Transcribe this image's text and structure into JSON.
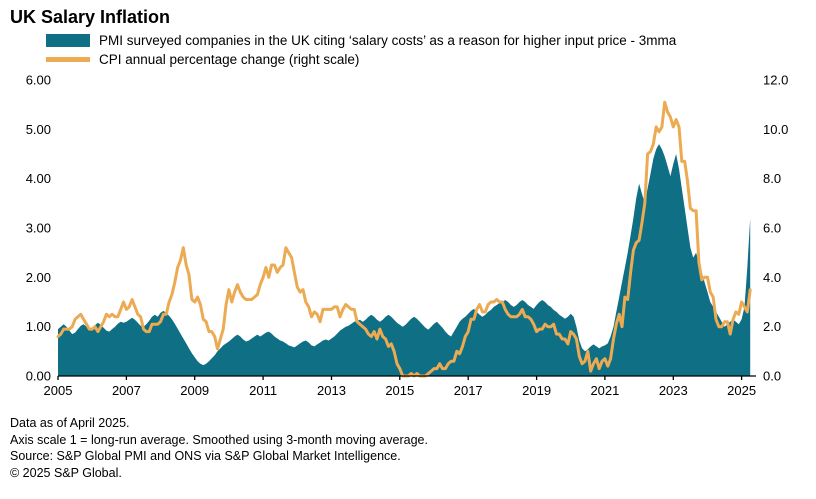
{
  "title": "UK Salary Inflation",
  "legend": [
    {
      "label": "PMI surveyed companies in the UK citing ‘salary costs’ as a reason for higher input price - 3mma",
      "color": "#0e6f85",
      "style": "area"
    },
    {
      "label": "CPI annual percentage change (right scale)",
      "color": "#ecaa52",
      "style": "line"
    }
  ],
  "footnotes": [
    "Data as of April 2025.",
    "Axis scale 1 = long-run average. Smoothed using 3-month moving average.",
    "Source: S&P Global PMI and ONS via S&P Global Market Intelligence.",
    "© 2025 S&P Global."
  ],
  "chart_data": {
    "type": "area",
    "x_data_start": 2005.0,
    "x_step_per_point": 0.0833333,
    "x_domain": [
      2005.0,
      2025.42
    ],
    "x_ticks": [
      2005,
      2007,
      2009,
      2011,
      2013,
      2015,
      2017,
      2019,
      2021,
      2023,
      2025
    ],
    "left_axis": {
      "range": [
        0,
        6
      ],
      "tick_values": [
        0,
        1,
        2,
        3,
        4,
        5,
        6
      ],
      "tick_labels": [
        "0.00",
        "1.00",
        "2.00",
        "3.00",
        "4.00",
        "5.00",
        "6.00"
      ]
    },
    "right_axis": {
      "range": [
        0,
        12
      ],
      "tick_values": [
        0,
        2,
        4,
        6,
        8,
        10,
        12
      ],
      "tick_labels": [
        "0.0",
        "2.0",
        "4.0",
        "6.0",
        "8.0",
        "10.0",
        "12.0"
      ]
    },
    "series": [
      {
        "name": "PMI salary costs mentions - 3mma",
        "axis": "left",
        "style": "area",
        "color": "#0e6f85",
        "values": [
          0.95,
          1.0,
          1.05,
          1.0,
          0.92,
          0.85,
          0.88,
          0.95,
          1.02,
          1.05,
          1.0,
          0.95,
          0.98,
          1.03,
          1.08,
          1.04,
          0.98,
          0.92,
          0.9,
          0.95,
          1.0,
          1.06,
          1.1,
          1.08,
          1.1,
          1.14,
          1.18,
          1.14,
          1.08,
          1.02,
          1.0,
          1.05,
          1.12,
          1.2,
          1.24,
          1.2,
          1.28,
          1.32,
          1.28,
          1.22,
          1.15,
          1.06,
          0.96,
          0.86,
          0.76,
          0.66,
          0.56,
          0.46,
          0.38,
          0.3,
          0.25,
          0.22,
          0.25,
          0.3,
          0.36,
          0.42,
          0.5,
          0.56,
          0.62,
          0.66,
          0.7,
          0.75,
          0.8,
          0.84,
          0.8,
          0.74,
          0.7,
          0.72,
          0.76,
          0.8,
          0.84,
          0.8,
          0.84,
          0.88,
          0.9,
          0.86,
          0.8,
          0.76,
          0.72,
          0.7,
          0.66,
          0.62,
          0.6,
          0.58,
          0.62,
          0.66,
          0.7,
          0.72,
          0.68,
          0.62,
          0.6,
          0.64,
          0.68,
          0.72,
          0.74,
          0.72,
          0.76,
          0.8,
          0.86,
          0.92,
          0.96,
          1.0,
          1.02,
          1.06,
          1.1,
          1.12,
          1.14,
          1.1,
          1.14,
          1.2,
          1.24,
          1.2,
          1.14,
          1.1,
          1.14,
          1.2,
          1.24,
          1.2,
          1.14,
          1.08,
          1.04,
          1.0,
          1.04,
          1.1,
          1.16,
          1.2,
          1.16,
          1.1,
          1.04,
          0.98,
          0.94,
          1.0,
          1.06,
          1.1,
          1.04,
          0.98,
          0.9,
          0.84,
          0.8,
          0.9,
          1.0,
          1.1,
          1.16,
          1.2,
          1.26,
          1.32,
          1.36,
          1.3,
          1.24,
          1.2,
          1.24,
          1.3,
          1.34,
          1.4,
          1.44,
          1.48,
          1.5,
          1.54,
          1.5,
          1.44,
          1.4,
          1.44,
          1.5,
          1.54,
          1.5,
          1.44,
          1.4,
          1.36,
          1.44,
          1.5,
          1.54,
          1.5,
          1.44,
          1.4,
          1.34,
          1.3,
          1.24,
          1.2,
          1.16,
          1.2,
          1.26,
          1.2,
          1.0,
          0.72,
          0.56,
          0.5,
          0.54,
          0.6,
          0.64,
          0.6,
          0.56,
          0.6,
          0.62,
          0.66,
          0.8,
          1.0,
          1.3,
          1.6,
          1.9,
          2.2,
          2.5,
          2.85,
          3.2,
          3.6,
          3.9,
          3.7,
          3.5,
          3.8,
          4.1,
          4.4,
          4.6,
          4.7,
          4.6,
          4.45,
          4.25,
          4.05,
          4.3,
          4.5,
          4.2,
          3.8,
          3.4,
          3.0,
          2.6,
          2.4,
          2.5,
          2.3,
          2.1,
          1.9,
          1.7,
          1.5,
          1.4,
          1.3,
          1.2,
          1.1,
          1.0,
          1.05,
          1.1,
          1.15,
          1.1,
          1.05,
          1.15,
          1.4,
          2.2,
          3.2
        ]
      },
      {
        "name": "CPI annual percentage change",
        "axis": "right",
        "style": "line",
        "color": "#ecaa52",
        "stroke_width": 3,
        "values": [
          1.6,
          1.7,
          1.9,
          1.9,
          1.9,
          2.0,
          2.3,
          2.4,
          2.5,
          2.3,
          2.1,
          1.9,
          1.9,
          2.0,
          1.8,
          2.0,
          2.2,
          2.5,
          2.4,
          2.5,
          2.4,
          2.4,
          2.7,
          3.0,
          2.7,
          2.8,
          3.1,
          2.8,
          2.5,
          2.4,
          1.9,
          1.8,
          1.8,
          2.1,
          2.1,
          2.1,
          2.2,
          2.5,
          2.5,
          3.0,
          3.3,
          3.8,
          4.4,
          4.7,
          5.2,
          4.5,
          4.1,
          3.1,
          3.0,
          3.2,
          2.9,
          2.3,
          2.2,
          1.8,
          1.8,
          1.6,
          1.1,
          1.5,
          1.9,
          2.9,
          3.5,
          3.0,
          3.4,
          3.7,
          3.4,
          3.2,
          3.1,
          3.1,
          3.1,
          3.2,
          3.3,
          3.7,
          4.0,
          4.4,
          4.0,
          4.5,
          4.5,
          4.2,
          4.4,
          4.5,
          5.2,
          5.0,
          4.8,
          4.2,
          3.6,
          3.4,
          3.5,
          3.0,
          2.8,
          2.4,
          2.6,
          2.5,
          2.2,
          2.7,
          2.7,
          2.7,
          2.7,
          2.8,
          2.8,
          2.4,
          2.7,
          2.9,
          2.8,
          2.7,
          2.7,
          2.2,
          2.1,
          2.0,
          1.9,
          1.7,
          1.6,
          1.8,
          1.5,
          1.9,
          1.6,
          1.5,
          1.2,
          1.3,
          1.0,
          0.5,
          0.3,
          0.0,
          0.0,
          0.0,
          0.1,
          0.0,
          0.1,
          0.0,
          0.0,
          0.0,
          0.1,
          0.2,
          0.3,
          0.3,
          0.5,
          0.3,
          0.3,
          0.5,
          0.6,
          0.6,
          1.0,
          0.9,
          1.2,
          1.6,
          1.8,
          2.3,
          2.3,
          2.7,
          2.9,
          2.6,
          2.6,
          2.9,
          3.0,
          3.0,
          3.1,
          3.0,
          3.0,
          2.7,
          2.5,
          2.4,
          2.4,
          2.4,
          2.5,
          2.7,
          2.4,
          2.4,
          2.3,
          2.1,
          1.8,
          1.9,
          1.9,
          2.1,
          2.0,
          2.0,
          2.1,
          1.7,
          1.7,
          1.5,
          1.5,
          1.3,
          1.8,
          1.7,
          1.5,
          0.8,
          0.5,
          0.6,
          1.0,
          0.2,
          0.5,
          0.7,
          0.3,
          0.6,
          0.7,
          0.4,
          0.7,
          1.5,
          2.1,
          2.5,
          2.0,
          3.2,
          3.1,
          4.2,
          5.1,
          5.4,
          5.5,
          6.2,
          7.0,
          9.0,
          9.1,
          9.4,
          10.1,
          9.9,
          10.1,
          11.1,
          10.7,
          10.5,
          10.1,
          10.4,
          10.1,
          8.7,
          8.7,
          7.9,
          6.8,
          6.7,
          6.7,
          4.6,
          3.9,
          4.0,
          4.0,
          3.4,
          3.2,
          2.3,
          2.0,
          2.0,
          2.2,
          2.2,
          1.7,
          2.3,
          2.6,
          2.5,
          3.0,
          2.8,
          2.6,
          3.5
        ]
      }
    ]
  }
}
